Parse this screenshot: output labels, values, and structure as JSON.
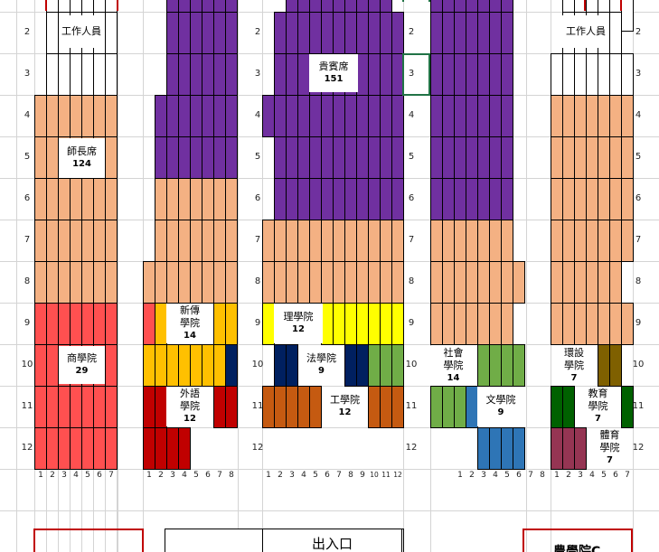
{
  "colors": {
    "purple": "#7030a0",
    "peach": "#f4b183",
    "red": "#ff5050",
    "gold": "#ffc000",
    "navy": "#002060",
    "darkred": "#c00000",
    "yellow": "#ffff00",
    "green": "#70ad47",
    "brown": "#c55a11",
    "blue": "#2e75b6",
    "olive": "#7f6000",
    "darkgreen": "#006100",
    "plum": "#953553",
    "border_red": "#c00000",
    "gridline": "#d4d4d4"
  },
  "labels": [
    {
      "name": "staff-label-left",
      "text": "工作人員",
      "count": ""
    },
    {
      "name": "staff-label-right",
      "text": "工作人員",
      "count": ""
    },
    {
      "name": "vip-seating-label",
      "text": "貴賓席",
      "count": "151"
    },
    {
      "name": "faculty-seating-label",
      "text": "師長席",
      "count": "124"
    },
    {
      "name": "journalism-college-label",
      "text": "新傳\n學院",
      "count": "14"
    },
    {
      "name": "science-college-label",
      "text": "理學院",
      "count": "12"
    },
    {
      "name": "business-college-label",
      "text": "商學院",
      "count": "29"
    },
    {
      "name": "law-college-label",
      "text": "法學院",
      "count": "9"
    },
    {
      "name": "social-sciences-college-label",
      "text": "社會\n學院",
      "count": "14"
    },
    {
      "name": "design-college-label",
      "text": "環設\n學院",
      "count": "7"
    },
    {
      "name": "foreign-languages-college-label",
      "text": "外語\n學院",
      "count": "12"
    },
    {
      "name": "engineering-college-label",
      "text": "工學院",
      "count": "12"
    },
    {
      "name": "liberal-arts-college-label",
      "text": "文學院",
      "count": "9"
    },
    {
      "name": "education-college-label",
      "text": "教育\n學院",
      "count": "7"
    },
    {
      "name": "sports-college-label",
      "text": "體育\n學院",
      "count": "7"
    }
  ],
  "row_numbers": [
    "2",
    "3",
    "4",
    "5",
    "6",
    "7",
    "8",
    "9",
    "10",
    "11",
    "12"
  ],
  "column_numbers": {
    "section_a": [
      "1",
      "2",
      "3",
      "4",
      "5",
      "6",
      "7"
    ],
    "section_b": [
      "1",
      "2",
      "3",
      "4",
      "5",
      "6",
      "7",
      "8"
    ],
    "section_c": [
      "1",
      "2",
      "3",
      "4",
      "5",
      "6",
      "7",
      "8",
      "9",
      "10",
      "11",
      "12"
    ],
    "section_d": [
      "1",
      "2",
      "3",
      "4",
      "5",
      "6",
      "7",
      "8"
    ],
    "section_e": [
      "1",
      "2",
      "3",
      "4",
      "5",
      "6",
      "7"
    ]
  },
  "entrance_label": "出入口",
  "partial_label": "農學院C"
}
